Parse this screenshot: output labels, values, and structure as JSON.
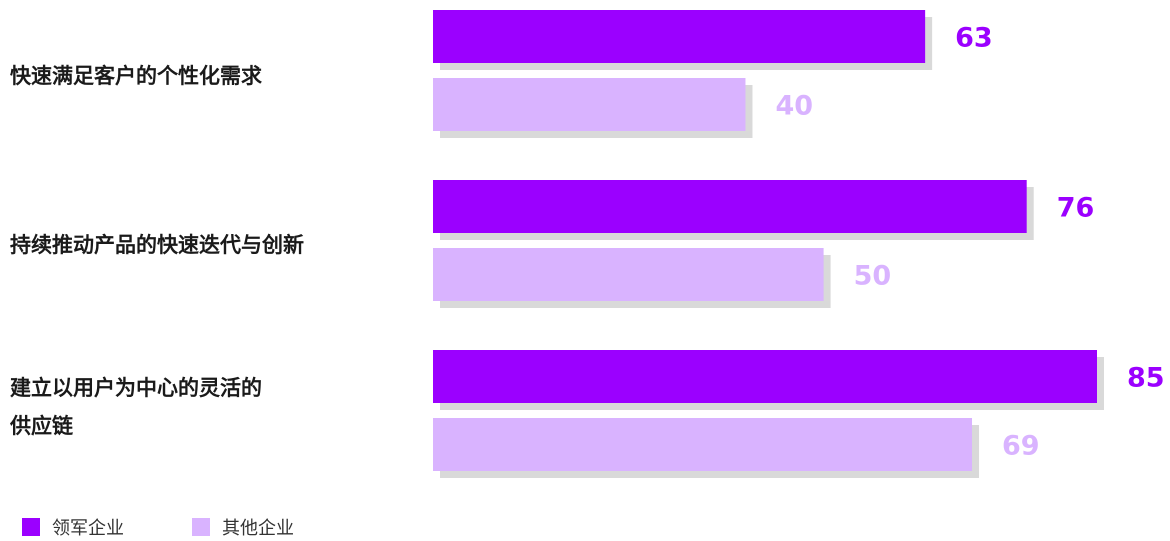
{
  "colors": {
    "leader": "#9b00ff",
    "other": "#d9b3ff",
    "shadow": "#d9d9d9"
  },
  "chart_data": {
    "type": "bar",
    "orientation": "horizontal",
    "categories": [
      "快速满足客户的个性化需求",
      "持续推动产品的快速迭代与创新",
      "建立以用户为中心的灵活的供应链"
    ],
    "series": [
      {
        "name": "领军企业",
        "values": [
          63,
          76,
          85
        ]
      },
      {
        "name": "其他企业",
        "values": [
          40,
          50,
          69
        ]
      }
    ],
    "title": "",
    "xlabel": "",
    "ylabel": "",
    "xlim": [
      0,
      85
    ],
    "grid": false,
    "legend": "bottom-left"
  },
  "labels": {
    "cat0": "快速满足客户的个性化需求",
    "cat1": "持续推动产品的快速迭代与创新",
    "cat2_line1": "建立以用户为中心的灵活的",
    "cat2_line2": "供应链"
  },
  "legend": {
    "leader": "领军企业",
    "other": "其他企业"
  }
}
